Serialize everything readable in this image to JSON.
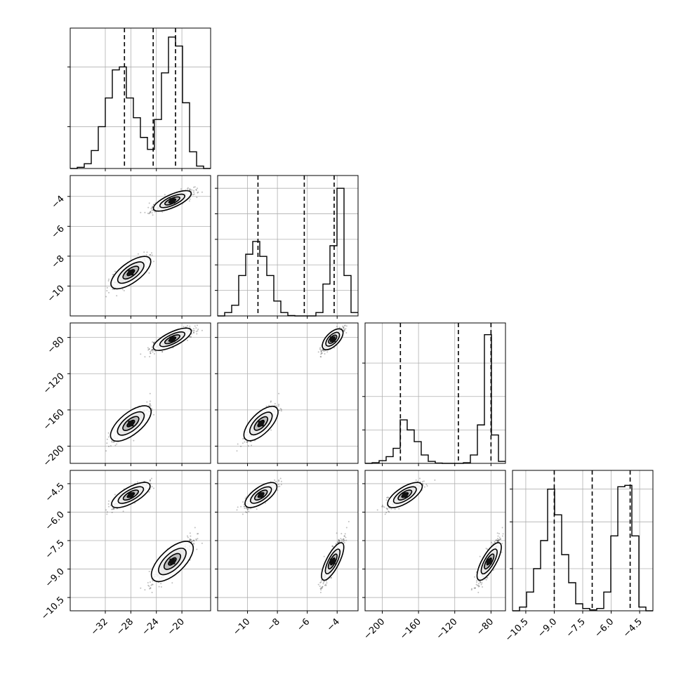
{
  "chart_data": {
    "type": "corner",
    "title": "",
    "grid": true,
    "colors": {
      "hist": "#000000",
      "points": "#000000",
      "grid": "#b0b0b0",
      "frame": "#000000"
    },
    "params": [
      {
        "range": [
          -37.5,
          -15.5
        ],
        "ticks": [
          -32,
          -28,
          -24,
          -20
        ],
        "tick_labels": [
          "−32",
          "−28",
          "−24",
          "−20"
        ]
      },
      {
        "range": [
          -12,
          -2.6
        ],
        "ticks": [
          -10,
          -8,
          -6,
          -4
        ],
        "tick_labels": [
          "−10",
          "−8",
          "−6",
          "−4"
        ]
      },
      {
        "range": [
          -219,
          -64
        ],
        "ticks": [
          -200,
          -160,
          -120,
          -80
        ],
        "tick_labels": [
          "−200",
          "−160",
          "−120",
          "−80"
        ]
      },
      {
        "range": [
          -11.2,
          -3.8
        ],
        "ticks": [
          -10.5,
          -9.0,
          -7.5,
          -6.0,
          -4.5
        ],
        "tick_labels": [
          "−10.5",
          "−9.0",
          "−7.5",
          "−6.0",
          "−4.5"
        ]
      }
    ],
    "histograms": [
      {
        "bins": [
          -37.5,
          -36.4,
          -35.3,
          -34.2,
          -33.1,
          -32.0,
          -30.9,
          -29.8,
          -28.7,
          -27.6,
          -26.5,
          -25.4,
          -24.3,
          -23.2,
          -22.1,
          -21.0,
          -19.9,
          -18.8,
          -17.7,
          -16.6,
          -15.5
        ],
        "counts": [
          0,
          2,
          8,
          30,
          70,
          118,
          165,
          170,
          118,
          85,
          52,
          32,
          82,
          160,
          220,
          205,
          110,
          28,
          4,
          0
        ],
        "ymax": 235,
        "grid_y": [
          70,
          170
        ],
        "quantiles": [
          -29.0,
          -24.5,
          -21.0
        ]
      },
      {
        "bins": [
          -12.0,
          -11.53,
          -11.06,
          -10.59,
          -10.12,
          -9.65,
          -9.18,
          -8.71,
          -8.24,
          -7.77,
          -7.3,
          -6.83,
          -6.36,
          -5.89,
          -5.42,
          -4.95,
          -4.48,
          -4.01,
          -3.54,
          -3.07,
          -2.6
        ],
        "counts": [
          0,
          8,
          25,
          95,
          145,
          175,
          140,
          95,
          35,
          8,
          1,
          0,
          0,
          0,
          8,
          75,
          165,
          300,
          95,
          8
        ],
        "ymax": 330,
        "grid_y": [
          60,
          120,
          180,
          240,
          300
        ],
        "quantiles": [
          -9.3,
          -6.2,
          -4.2
        ]
      },
      {
        "bins": [
          -219,
          -211.25,
          -203.5,
          -195.75,
          -188,
          -180.25,
          -172.5,
          -164.75,
          -157,
          -149.25,
          -141.5,
          -133.75,
          -126,
          -118.25,
          -110.5,
          -102.75,
          -95,
          -87.25,
          -79.5,
          -71.75,
          -64
        ],
        "counts": [
          0,
          2,
          8,
          20,
          45,
          130,
          100,
          65,
          25,
          6,
          1,
          0,
          0,
          0,
          2,
          25,
          115,
          385,
          85,
          6
        ],
        "ymax": 420,
        "grid_y": [
          100,
          200,
          300
        ],
        "quantiles": [
          -180,
          -116,
          -80
        ]
      },
      {
        "bins": [
          -11.2,
          -10.83,
          -10.46,
          -10.09,
          -9.72,
          -9.35,
          -8.98,
          -8.61,
          -8.24,
          -7.87,
          -7.5,
          -7.13,
          -6.76,
          -6.39,
          -6.02,
          -5.65,
          -5.28,
          -4.91,
          -4.54,
          -4.17,
          -3.8
        ],
        "counts": [
          0,
          8,
          40,
          90,
          150,
          260,
          205,
          120,
          60,
          15,
          5,
          2,
          5,
          40,
          160,
          265,
          268,
          160,
          8,
          0
        ],
        "ymax": 300,
        "grid_y": [
          90,
          190,
          260
        ],
        "quantiles": [
          -9.0,
          -7.0,
          -5.0
        ]
      }
    ],
    "clusters": [
      {
        "c": [
          -28.0,
          -9.1,
          -175,
          -5.1
        ],
        "sd": [
          1.6,
          0.55,
          10,
          0.33
        ],
        "w": 0.45
      },
      {
        "c": [
          -21.5,
          -4.3,
          -82,
          -8.6
        ],
        "sd": [
          1.6,
          0.33,
          6,
          0.55
        ],
        "w": 0.55
      }
    ],
    "scatter_points": 900
  }
}
